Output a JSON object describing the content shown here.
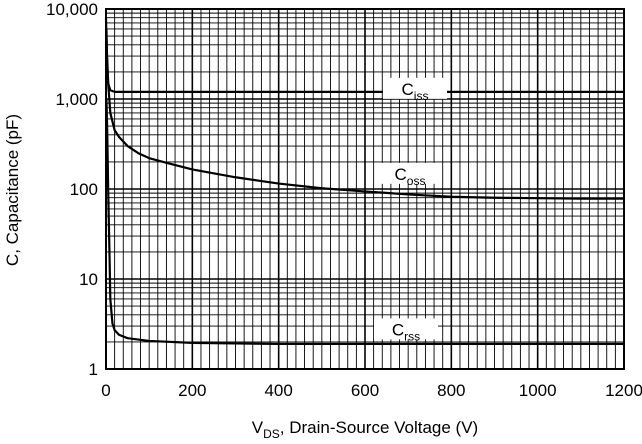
{
  "chart_data": {
    "type": "line",
    "title": "",
    "xlabel": {
      "main": "V",
      "sub": "DS",
      "rest": ", Drain-Source Voltage (V)"
    },
    "ylabel": "C, Capacitance (pF)",
    "xlim": [
      0,
      1200
    ],
    "ylim": [
      1,
      10000
    ],
    "y_scale": "log",
    "grid": true,
    "x_ticks": [
      "0",
      "200",
      "400",
      "600",
      "800",
      "1000",
      "1200"
    ],
    "y_ticks": [
      "1",
      "10",
      "100",
      "1,000",
      "10,000"
    ],
    "series": [
      {
        "name": "Ciss",
        "label": {
          "main": "C",
          "sub": "iss"
        },
        "x": [
          0,
          2,
          5,
          10,
          20,
          50,
          100,
          200,
          400,
          600,
          800,
          1000,
          1200
        ],
        "y": [
          8000,
          3000,
          1500,
          1250,
          1200,
          1200,
          1200,
          1200,
          1200,
          1200,
          1200,
          1200,
          1200
        ]
      },
      {
        "name": "Coss",
        "label": {
          "main": "C",
          "sub": "oss"
        },
        "x": [
          1,
          2,
          5,
          10,
          20,
          30,
          50,
          75,
          100,
          150,
          200,
          300,
          400,
          500,
          600,
          700,
          800,
          900,
          1000,
          1100,
          1200
        ],
        "y": [
          6000,
          3500,
          1500,
          700,
          450,
          380,
          300,
          250,
          220,
          190,
          165,
          135,
          115,
          102,
          94,
          87,
          82,
          80,
          79,
          78,
          78
        ]
      },
      {
        "name": "Crss",
        "label": {
          "main": "C",
          "sub": "rss"
        },
        "x": [
          1,
          3,
          5,
          8,
          10,
          15,
          20,
          30,
          50,
          100,
          200,
          400,
          600,
          800,
          1000,
          1200
        ],
        "y": [
          1000,
          400,
          100,
          20,
          6,
          3.2,
          2.7,
          2.4,
          2.2,
          2.05,
          1.95,
          1.9,
          1.9,
          1.9,
          1.9,
          1.9
        ]
      }
    ]
  }
}
